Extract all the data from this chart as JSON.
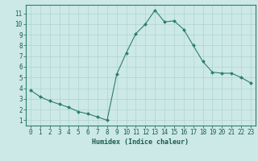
{
  "x": [
    0,
    1,
    2,
    3,
    4,
    5,
    6,
    7,
    8,
    9,
    10,
    11,
    12,
    13,
    14,
    15,
    16,
    17,
    18,
    19,
    20,
    21,
    22,
    23
  ],
  "y": [
    3.8,
    3.2,
    2.8,
    2.5,
    2.2,
    1.8,
    1.6,
    1.3,
    1.0,
    5.3,
    7.3,
    9.1,
    10.0,
    11.3,
    10.2,
    10.3,
    9.5,
    8.0,
    6.5,
    5.5,
    5.4,
    5.4,
    5.0,
    4.5
  ],
  "line_color": "#2e7d6e",
  "marker": "D",
  "marker_size": 2.0,
  "bg_color": "#cce9e7",
  "grid_color": "#aed4d0",
  "xlabel": "Humidex (Indice chaleur)",
  "xlabel_fontsize": 6.0,
  "tick_fontsize": 5.5,
  "xlim": [
    -0.5,
    23.5
  ],
  "ylim": [
    0.5,
    11.8
  ],
  "yticks": [
    1,
    2,
    3,
    4,
    5,
    6,
    7,
    8,
    9,
    10,
    11
  ],
  "xticks": [
    0,
    1,
    2,
    3,
    4,
    5,
    6,
    7,
    8,
    9,
    10,
    11,
    12,
    13,
    14,
    15,
    16,
    17,
    18,
    19,
    20,
    21,
    22,
    23
  ],
  "spine_color": "#2e7d6e",
  "axis_label_color": "#1a5c52",
  "linewidth": 0.8
}
